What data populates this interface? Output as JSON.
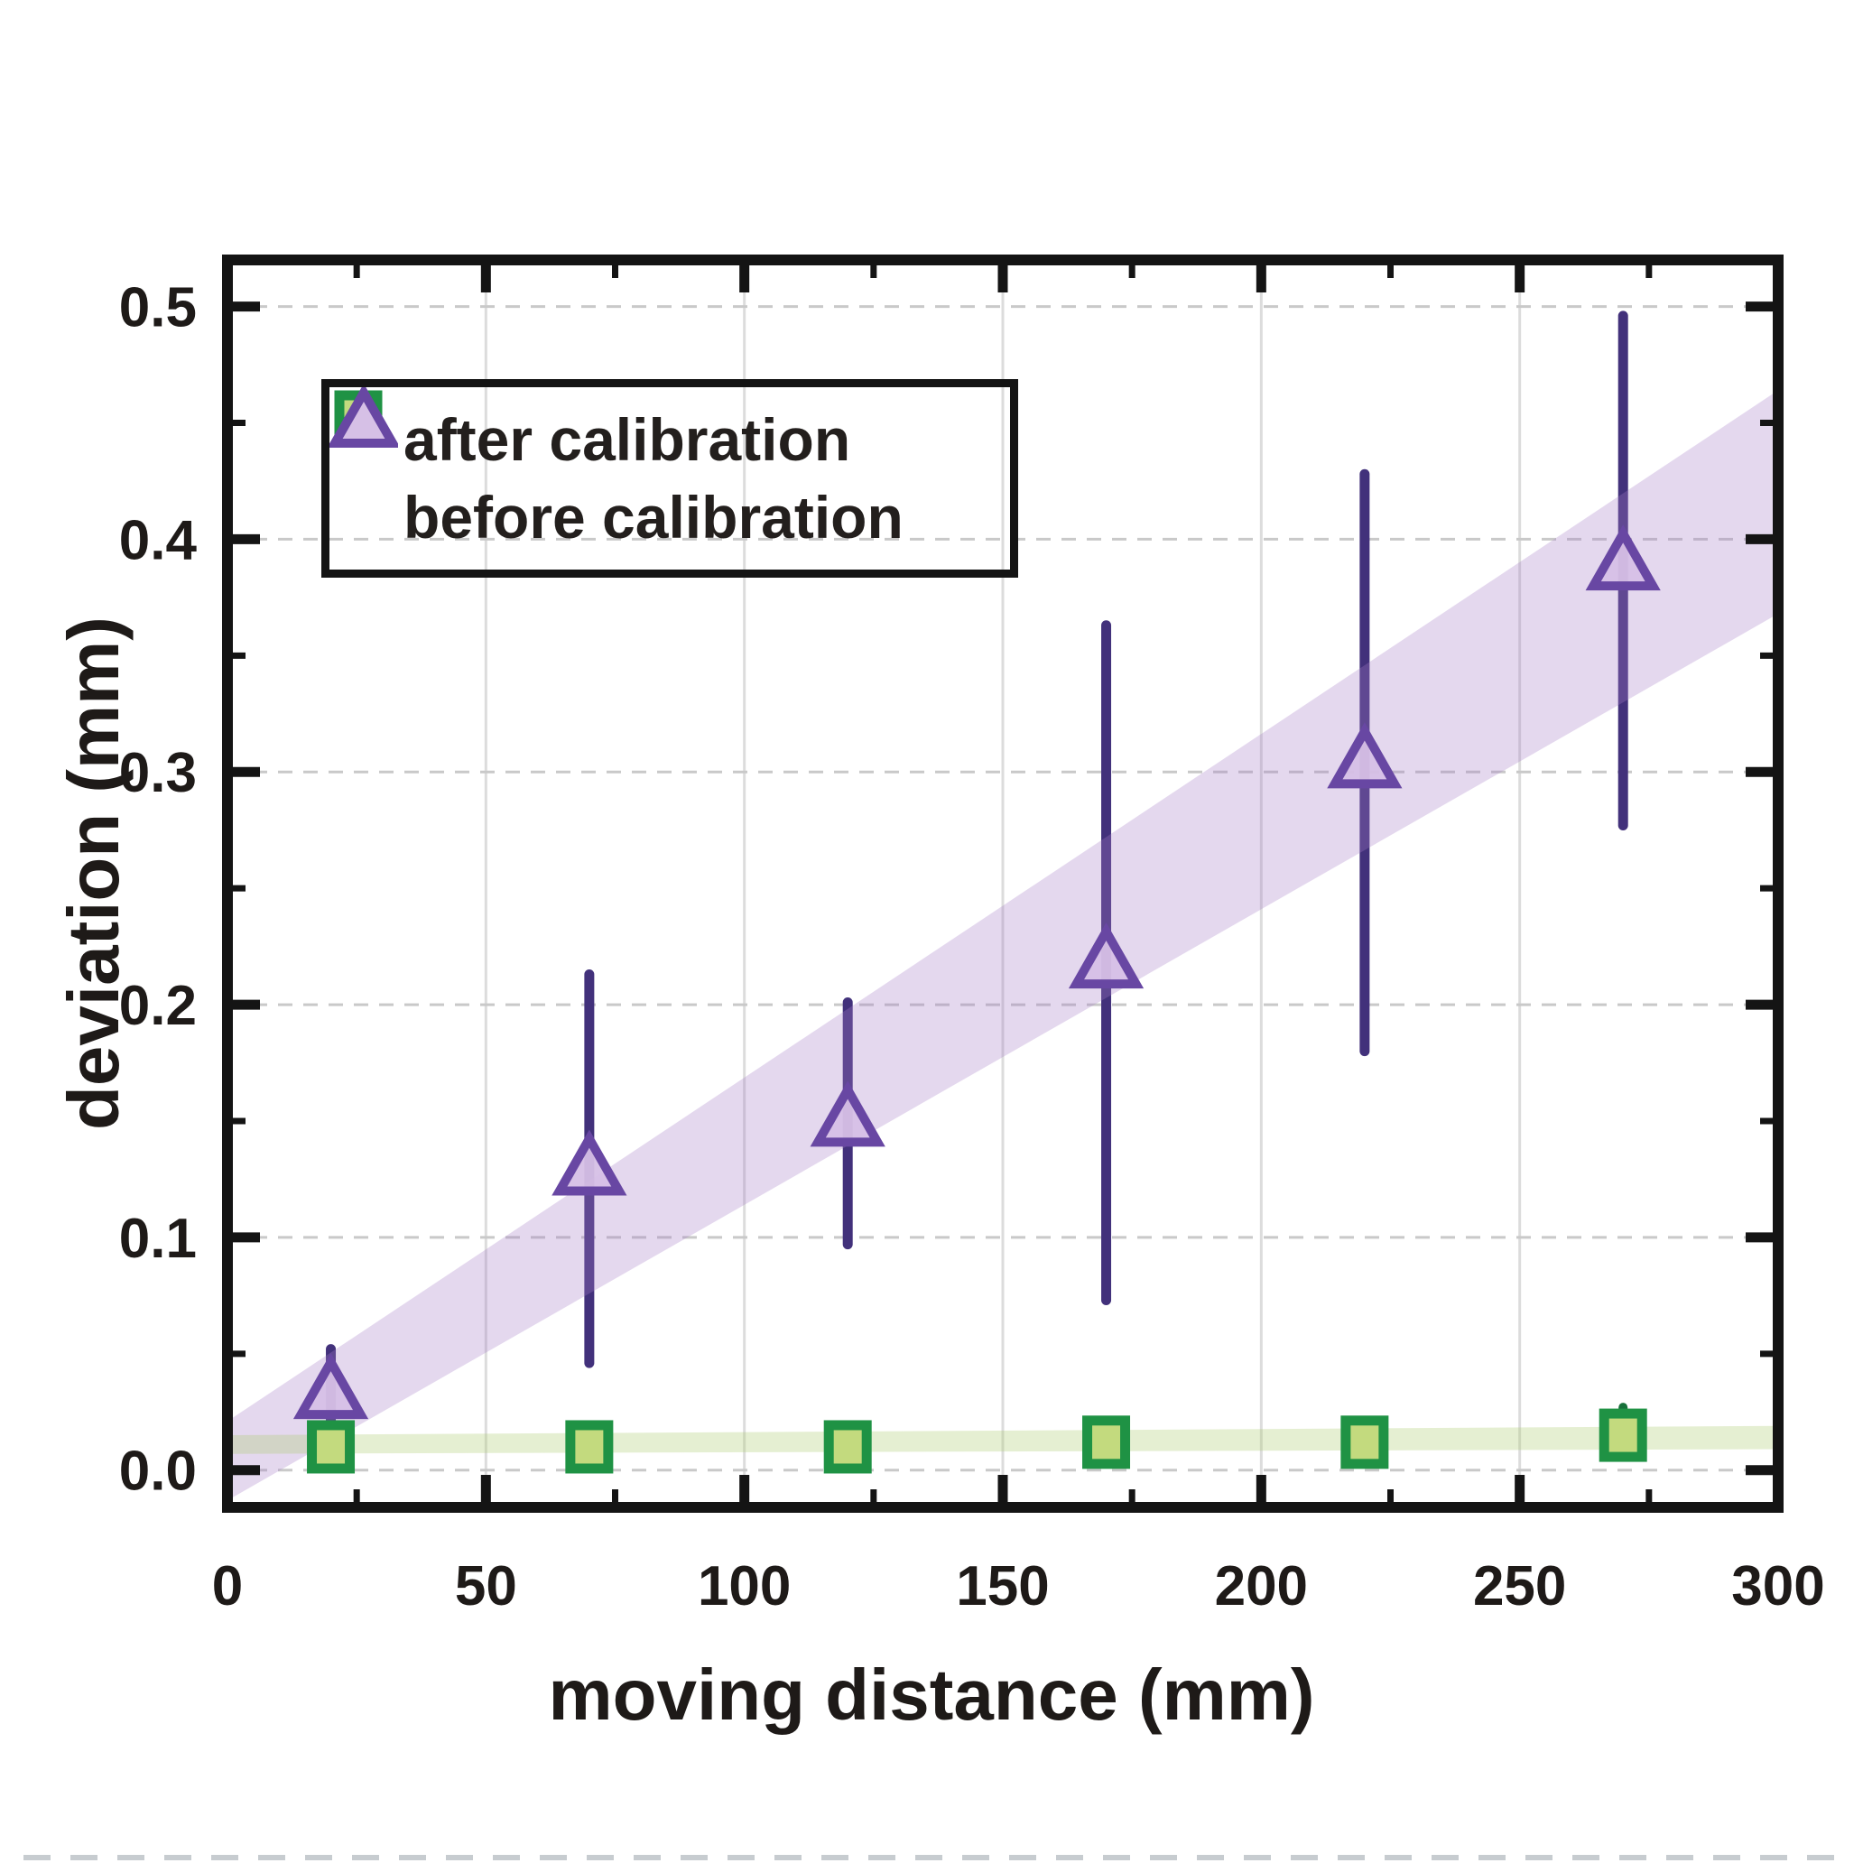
{
  "figure": {
    "background": "#ffffff",
    "frame_color": "#141414",
    "text_color": "#1e1a18"
  },
  "chart_data": {
    "type": "scatter",
    "title": "",
    "xlabel": "moving distance (mm)",
    "ylabel": "deviation (mm)",
    "xlim": [
      0,
      300
    ],
    "ylim": [
      -0.016,
      0.52
    ],
    "grid": {
      "horizontal": "dashed",
      "vertical": "solid",
      "color": "#d7d7d7"
    },
    "legend_position": "upper-left",
    "x_major_ticks": [
      0,
      50,
      100,
      150,
      200,
      250,
      300
    ],
    "x_tick_labels": [
      "0",
      "50",
      "100",
      "150",
      "200",
      "250",
      "300"
    ],
    "x_minor_ticks": [
      25,
      75,
      125,
      175,
      225,
      275
    ],
    "y_major_ticks": [
      0.0,
      0.1,
      0.2,
      0.3,
      0.4,
      0.5
    ],
    "y_tick_labels": [
      "0.0",
      "0.1",
      "0.2",
      "0.3",
      "0.4",
      "0.5"
    ],
    "y_minor_ticks": [
      0.05,
      0.15,
      0.25,
      0.35,
      0.45
    ],
    "series": [
      {
        "name": "after calibration",
        "marker": "square",
        "marker_edge_color": "#1f9244",
        "marker_fill_color": "#c3da7e",
        "errorbar_color": "#17713a",
        "x": [
          20,
          70,
          120,
          170,
          220,
          270
        ],
        "y": [
          0.01,
          0.01,
          0.01,
          0.012,
          0.012,
          0.015
        ],
        "y_err_low": [
          0.002,
          0.002,
          0.003,
          0.004,
          0.004,
          0.003
        ],
        "y_err_high": [
          0.018,
          0.018,
          0.017,
          0.02,
          0.02,
          0.027
        ]
      },
      {
        "name": "before calibration",
        "marker": "triangle-up",
        "marker_edge_color": "#6847a3",
        "marker_fill_color": "#d6c0e6",
        "errorbar_color": "#42317b",
        "x": [
          20,
          70,
          120,
          170,
          220,
          270
        ],
        "y": [
          0.034,
          0.13,
          0.151,
          0.219,
          0.305,
          0.39
        ],
        "y_err_low": [
          0.018,
          0.046,
          0.097,
          0.073,
          0.18,
          0.277
        ],
        "y_err_high": [
          0.052,
          0.213,
          0.201,
          0.363,
          0.428,
          0.496
        ]
      }
    ],
    "bands": [
      {
        "name": "before-calibration fit band",
        "x": [
          0,
          300
        ],
        "lower": [
          -0.013,
          0.368
        ],
        "upper": [
          0.021,
          0.464
        ],
        "color": "#a57fc6",
        "opacity": 0.3
      },
      {
        "name": "after-calibration fit band",
        "x": [
          0,
          300
        ],
        "lower": [
          0.007,
          0.009
        ],
        "upper": [
          0.015,
          0.019
        ],
        "color": "#adcc74",
        "opacity": 0.32
      }
    ]
  },
  "legend": {
    "items": [
      {
        "label": "after calibration",
        "marker": "square"
      },
      {
        "label": "before calibration",
        "marker": "triangle-up"
      }
    ]
  },
  "titles": {
    "x": "moving distance (mm)",
    "y": "deviation (mm)"
  }
}
